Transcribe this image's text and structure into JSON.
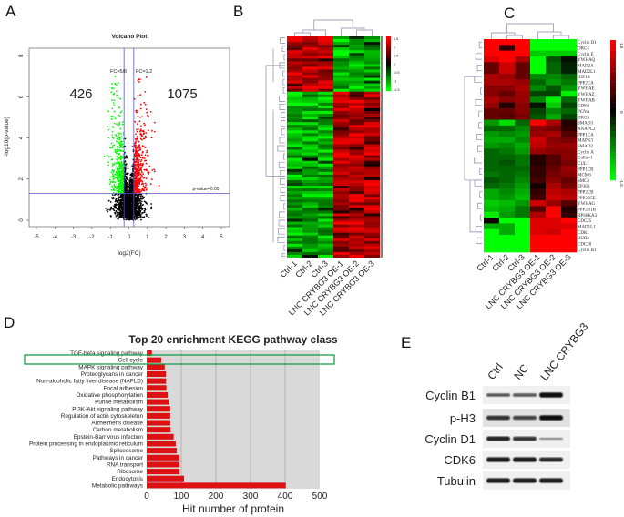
{
  "panels": {
    "a": "A",
    "b": "B",
    "c": "C",
    "d": "D",
    "e": "E"
  },
  "colors": {
    "up": "#ff0000",
    "down": "#00ff00",
    "neutral": "#000000",
    "threshold_line": "#5555cc",
    "bar": "#dd1111",
    "plot_bg": "#d9d9d9",
    "highlight": "#1a9e4a"
  },
  "chart_data": [
    {
      "id": "volcano",
      "type": "scatter",
      "title": "Volcano Plot",
      "xlabel": "log2(FC)",
      "ylabel": "-log10(p-value)",
      "xlim": [
        -5.5,
        5.5
      ],
      "ylim": [
        -0.3,
        8.3
      ],
      "xticks": [
        "-5",
        "-4",
        "-3",
        "-2",
        "-1",
        "0",
        "1",
        "2",
        "3",
        "4",
        "5"
      ],
      "yticks": [
        "0",
        "2",
        "4",
        "6",
        "8"
      ],
      "thresholds": {
        "fc_low": 0.8333,
        "fc_high": 1.2,
        "p_value": 0.05
      },
      "threshold_labels": {
        "fc_low": "FC=5/6",
        "fc_high": "FC=1.2",
        "p": "p-value=0.05"
      },
      "counts": {
        "down": "426",
        "up": "1075"
      }
    },
    {
      "id": "heatmap-b",
      "type": "heatmap",
      "columns": [
        "Ctrl-1",
        "Ctrl-2",
        "Ctrl-3",
        "LNC CRYBG3 OE-1",
        "LNC CRYBG3 OE-2",
        "LNC CRYBG3 OE-3"
      ],
      "colorbar_ticks": [
        "1.5",
        "1",
        "0.5",
        "0",
        "-0.5",
        "-1",
        "-1.5"
      ],
      "value_range": [
        -1.5,
        1.5
      ],
      "clusters": [
        {
          "fraction": 0.25,
          "ctrl": "up",
          "oe": "down"
        },
        {
          "fraction": 0.75,
          "ctrl": "down",
          "oe": "up"
        }
      ]
    },
    {
      "id": "heatmap-c",
      "type": "heatmap",
      "columns": [
        "Ctrl-1",
        "Ctrl-2",
        "Ctrl-3",
        "LNC CRYBG3 OE-1",
        "LNC CRYBG3 OE-2",
        "LNC CRYBG3 OE-3"
      ],
      "colorbar_ticks": [
        "1.5",
        "0",
        "-1.5"
      ],
      "value_range": [
        -1.5,
        1.5
      ],
      "rows": [
        {
          "gene": "Cyclin D1",
          "values": [
            1.5,
            1.5,
            1.5,
            -1.5,
            -1.5,
            -1.5
          ]
        },
        {
          "gene": "ORC4",
          "values": [
            1.5,
            0.3,
            1.5,
            -1.5,
            -1.5,
            -1.5
          ]
        },
        {
          "gene": "Cyclin E",
          "values": [
            1.5,
            1.5,
            1.5,
            -1.2,
            -1.2,
            -1.2
          ]
        },
        {
          "gene": "YWHAQ",
          "values": [
            1.3,
            1.5,
            1.0,
            -1.5,
            -0.5,
            -0.1
          ]
        },
        {
          "gene": "MAD2A",
          "values": [
            0.6,
            1.2,
            0.6,
            -1.5,
            -0.6,
            -0.2
          ]
        },
        {
          "gene": "MAD2L1",
          "values": [
            0.6,
            1.2,
            0.6,
            -1.5,
            -0.6,
            -0.2
          ]
        },
        {
          "gene": "IGF1R",
          "values": [
            1.0,
            0.9,
            0.6,
            -0.8,
            -0.8,
            -0.6
          ]
        },
        {
          "gene": "PPP2CA",
          "values": [
            1.0,
            1.0,
            0.9,
            -0.6,
            -0.9,
            -0.7
          ]
        },
        {
          "gene": "YWHAE",
          "values": [
            0.8,
            0.8,
            1.0,
            -0.8,
            -0.5,
            -0.9
          ]
        },
        {
          "gene": "YWHAZ",
          "values": [
            0.8,
            0.6,
            0.9,
            -0.4,
            -0.4,
            -1.4
          ]
        },
        {
          "gene": "YWHAB",
          "values": [
            1.0,
            0.8,
            0.9,
            -0.8,
            -1.4,
            -0.6
          ]
        },
        {
          "gene": "CDK6",
          "values": [
            0.9,
            0.2,
            0.8,
            -0.1,
            -1.2,
            -0.4
          ]
        },
        {
          "gene": "PCNA",
          "values": [
            0.6,
            0.6,
            0.8,
            -0.4,
            -0.8,
            -0.6
          ]
        },
        {
          "gene": "ORC3",
          "values": [
            0.6,
            0.5,
            0.7,
            -0.5,
            -1.0,
            -0.4
          ]
        },
        {
          "gene": "SMAD3",
          "values": [
            -0.9,
            -1.3,
            -0.6,
            1.5,
            1.0,
            0.2
          ]
        },
        {
          "gene": "ANAPC2",
          "values": [
            -0.6,
            -0.6,
            -0.8,
            0.8,
            0.7,
            0.3
          ]
        },
        {
          "gene": "PPP1CA",
          "values": [
            -0.9,
            -0.8,
            -0.9,
            0.9,
            1.0,
            0.5
          ]
        },
        {
          "gene": "MAPK3",
          "values": [
            -1.0,
            -1.0,
            -0.8,
            1.2,
            0.8,
            0.7
          ]
        },
        {
          "gene": "SMAD2",
          "values": [
            -0.9,
            -0.8,
            -1.0,
            1.1,
            0.9,
            0.9
          ]
        },
        {
          "gene": "Cyclin A",
          "values": [
            -0.6,
            -0.7,
            -0.9,
            0.9,
            0.8,
            0.8
          ]
        },
        {
          "gene": "Cullin-1",
          "values": [
            -0.6,
            -0.6,
            -0.7,
            0.2,
            0.5,
            0.8
          ]
        },
        {
          "gene": "CUL1",
          "values": [
            -0.6,
            -0.5,
            -0.7,
            0.2,
            0.5,
            0.7
          ]
        },
        {
          "gene": "PPP1CB",
          "values": [
            -0.6,
            -0.6,
            -0.6,
            0.3,
            0.6,
            0.9
          ]
        },
        {
          "gene": "MCM6",
          "values": [
            -0.7,
            -0.6,
            -0.7,
            0.3,
            0.7,
            0.8
          ]
        },
        {
          "gene": "SMC3",
          "values": [
            -0.5,
            -0.6,
            -0.8,
            0.4,
            0.8,
            0.6
          ]
        },
        {
          "gene": "EP300",
          "values": [
            -0.6,
            -0.7,
            -0.9,
            0.1,
            1.0,
            0.7
          ]
        },
        {
          "gene": "PPP2CB",
          "values": [
            -1.0,
            -0.8,
            -1.0,
            0.3,
            1.1,
            1.0
          ]
        },
        {
          "gene": "PPP2R5E",
          "values": [
            -1.0,
            -0.9,
            -1.1,
            0.4,
            1.2,
            1.1
          ]
        },
        {
          "gene": "YWHAG",
          "values": [
            -1.2,
            -1.1,
            -0.9,
            1.2,
            0.9,
            0.5
          ]
        },
        {
          "gene": "PPP2R1B",
          "values": [
            -1.1,
            -1.0,
            -0.7,
            0.5,
            1.5,
            0.2
          ]
        },
        {
          "gene": "RPS6KA3",
          "values": [
            -1.4,
            -0.9,
            -0.7,
            1.0,
            1.5,
            0.3
          ]
        },
        {
          "gene": "CDC25",
          "values": [
            0.1,
            -1.5,
            -1.5,
            1.3,
            1.3,
            1.5
          ]
        },
        {
          "gene": "MAD1L1",
          "values": [
            -1.0,
            -1.0,
            -1.5,
            1.3,
            1.3,
            1.3
          ]
        },
        {
          "gene": "CDK1",
          "values": [
            -1.5,
            -1.0,
            -1.5,
            1.3,
            1.2,
            1.5
          ]
        },
        {
          "gene": "BUB3",
          "values": [
            -1.5,
            -1.5,
            -1.5,
            1.5,
            1.5,
            1.5
          ]
        },
        {
          "gene": "CDC20",
          "values": [
            -1.5,
            -1.5,
            -1.5,
            1.5,
            1.5,
            1.5
          ]
        },
        {
          "gene": "Cyclin B1",
          "values": [
            -1.5,
            -1.5,
            -1.5,
            1.5,
            1.5,
            1.5
          ]
        }
      ]
    },
    {
      "id": "kegg-bar",
      "type": "bar",
      "orientation": "horizontal",
      "title": "Top 20 enrichment KEGG pathway class",
      "xlabel": "Hit number of protein",
      "xlim": [
        0,
        500
      ],
      "xticks": [
        "0",
        "100",
        "200",
        "300",
        "400",
        "500"
      ],
      "grid": true,
      "highlighted": "Cell cycle",
      "categories": [
        "TGF-beta signaling pathway",
        "Cell cycle",
        "MAPK signaling pathway",
        "Proteoglycans in cancer",
        "Non-alcoholic fatty liver disease (NAFLD)",
        "Focal adhesion",
        "Oxidative phosphorylation",
        "Purine metabolism",
        "PI3K-Akt signaling pathway",
        "Regulation of actin cytoskeleton",
        "Alzheimer's disease",
        "Carbon metabolism",
        "Epstein-Barr virus infection",
        "Protein processing in endoplasmic reticulum",
        "Spliceosome",
        "Pathways in cancer",
        "RNA transport",
        "Ribosome",
        "Endocytosis",
        "Metabolic pathways"
      ],
      "values": [
        15,
        42,
        52,
        56,
        56,
        57,
        61,
        65,
        68,
        68,
        68,
        69,
        78,
        84,
        87,
        95,
        95,
        95,
        108,
        402
      ]
    },
    {
      "id": "western-blot",
      "type": "table",
      "lanes": [
        "Ctrl",
        "NC",
        "LNC CRYBG3"
      ],
      "rows": [
        {
          "protein": "Cyclin B1",
          "intensity": [
            0.45,
            0.5,
            1.0
          ]
        },
        {
          "protein": "p-H3",
          "intensity": [
            0.75,
            0.65,
            1.0
          ]
        },
        {
          "protein": "Cyclin D1",
          "intensity": [
            0.85,
            0.75,
            0.12
          ]
        },
        {
          "protein": "CDK6",
          "intensity": [
            0.9,
            0.9,
            0.8
          ]
        },
        {
          "protein": "Tubulin",
          "intensity": [
            0.9,
            0.9,
            0.9
          ]
        }
      ]
    }
  ]
}
